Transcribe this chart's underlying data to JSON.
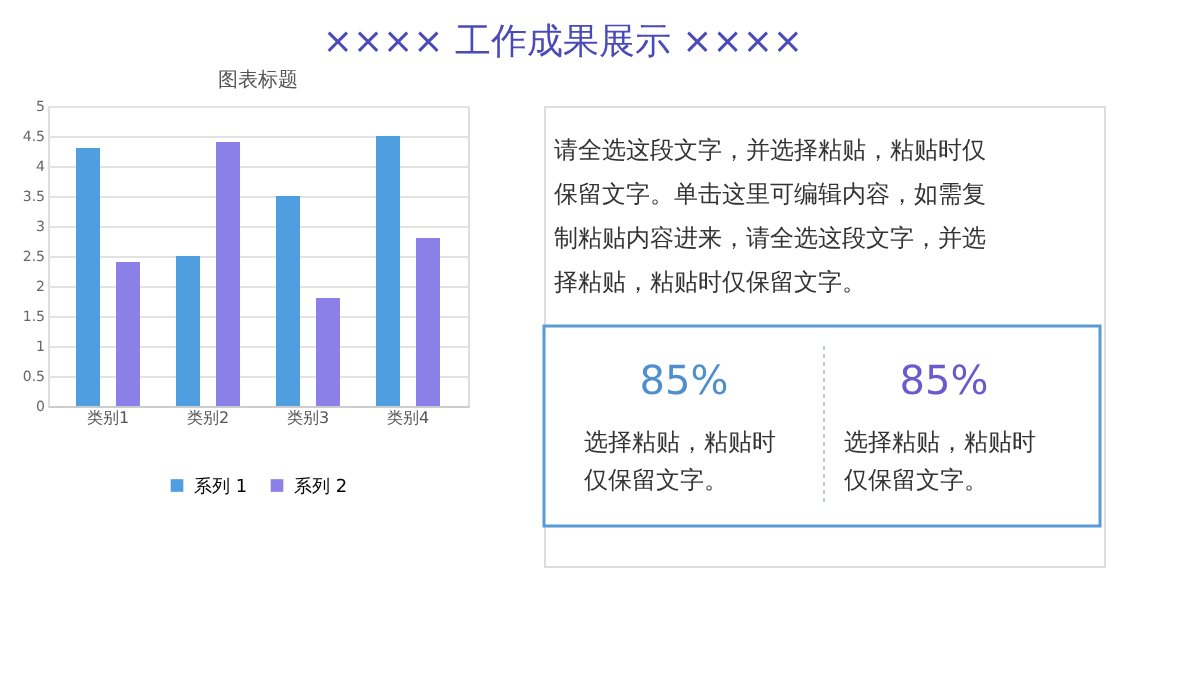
{
  "chart_data": [
    {
      "type": "bar",
      "title": "图表标题",
      "categories": [
        "类别1",
        "类别2",
        "类别3",
        "类别4"
      ],
      "series": [
        {
          "name": "系列 1",
          "color": "#4f9fe0",
          "values": [
            4.3,
            2.5,
            3.5,
            4.5
          ]
        },
        {
          "name": "系列 2",
          "color": "#8b7fe8",
          "values": [
            2.4,
            4.4,
            1.8,
            2.8
          ]
        }
      ],
      "ylim": [
        0,
        5
      ],
      "yticks": [
        0,
        0.5,
        1,
        1.5,
        2,
        2.5,
        3,
        3.5,
        4,
        4.5,
        5
      ],
      "grid": "y",
      "legend": "bottom"
    },
    {
      "type": "other",
      "title": "×××× 工作成果展示 ××××",
      "annotations": [
        "请全选这段文字，并选择粘贴，粘贴时仅保留文字。单击这里可编辑内容，如需复制粘贴内容进来，请全选这段文字，并选择粘贴，粘贴时仅保留文字。",
        "85%",
        "选择粘贴，粘贴时仅保留文字。",
        "85%",
        "选择粘贴，粘贴时仅保留文字。"
      ]
    }
  ]
}
